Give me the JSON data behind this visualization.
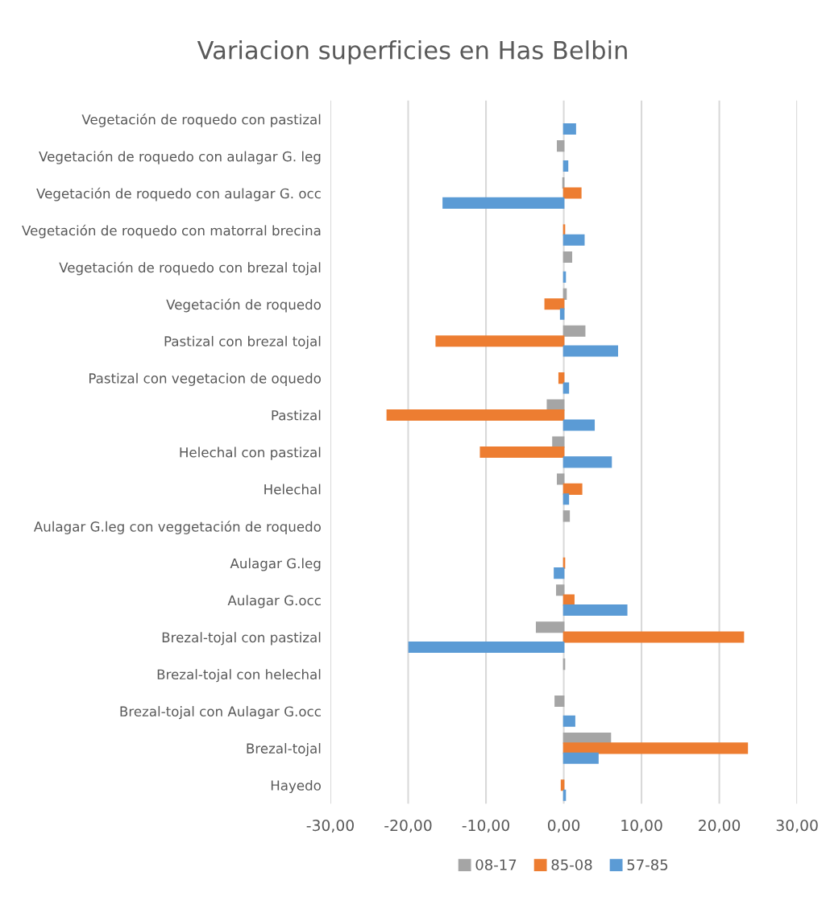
{
  "chart_data": {
    "type": "bar",
    "orientation": "horizontal",
    "title": "Variacion superficies en Has Belbin",
    "categories": [
      "Vegetación de roquedo con pastizal",
      "Vegetación de roquedo con aulagar G. leg",
      "Vegetación de roquedo con aulagar G. occ",
      "Vegetación de roquedo con matorral brecina",
      "Vegetación de roquedo con brezal tojal",
      "Vegetación de roquedo",
      "Pastizal con brezal tojal",
      "Pastizal con vegetacion de oquedo",
      "Pastizal",
      "Helechal con pastizal",
      "Helechal",
      "Aulagar G.leg con veggetación de roquedo",
      "Aulagar G.leg",
      "Aulagar G.occ",
      "Brezal-tojal con pastizal",
      "Brezal-tojal con helechal",
      "Brezal-tojal con Aulagar G.occ",
      "Brezal-tojal",
      "Hayedo"
    ],
    "series": [
      {
        "name": "08-17",
        "color": "#a5a5a5",
        "values": [
          null,
          -0.8,
          -0.1,
          null,
          1.0,
          0.3,
          2.7,
          null,
          -2.1,
          -1.4,
          -0.8,
          0.7,
          null,
          -0.9,
          -3.5,
          0.1,
          -1.1,
          6.0,
          null
        ]
      },
      {
        "name": "85-08",
        "color": "#ed7d31",
        "values": [
          null,
          null,
          2.2,
          0.1,
          null,
          -2.4,
          -16.4,
          -0.6,
          -22.7,
          -10.7,
          2.3,
          null,
          0.1,
          1.3,
          23.1,
          null,
          null,
          23.6,
          -0.3
        ]
      },
      {
        "name": "57-85",
        "color": "#5b9bd5",
        "values": [
          1.5,
          0.5,
          -15.5,
          2.6,
          0.2,
          -0.4,
          6.9,
          0.6,
          3.9,
          6.1,
          0.6,
          null,
          -1.2,
          8.1,
          -19.9,
          null,
          1.4,
          4.4,
          0.2
        ]
      }
    ],
    "xlim": [
      -30,
      30
    ],
    "xticks": [
      {
        "value": -30,
        "label": "-30,00"
      },
      {
        "value": -20,
        "label": "-20,00"
      },
      {
        "value": -10,
        "label": "-10,00"
      },
      {
        "value": 0,
        "label": "0,00"
      },
      {
        "value": 10,
        "label": "10,00"
      },
      {
        "value": 20,
        "label": "20,00"
      },
      {
        "value": 30,
        "label": "30,00"
      }
    ],
    "grid": "x",
    "legend": "bottom"
  }
}
